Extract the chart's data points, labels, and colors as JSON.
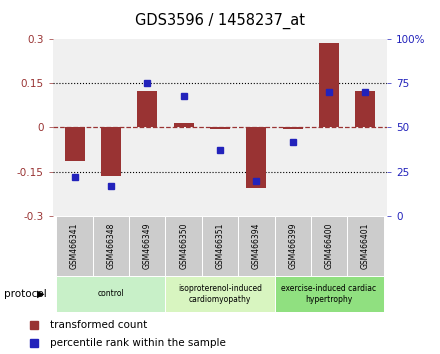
{
  "title": "GDS3596 / 1458237_at",
  "samples": [
    "GSM466341",
    "GSM466348",
    "GSM466349",
    "GSM466350",
    "GSM466351",
    "GSM466394",
    "GSM466399",
    "GSM466400",
    "GSM466401"
  ],
  "red_values": [
    -0.115,
    -0.165,
    0.125,
    0.015,
    -0.005,
    -0.205,
    -0.005,
    0.285,
    0.125
  ],
  "blue_values": [
    22,
    17,
    75,
    68,
    37,
    20,
    42,
    70,
    70
  ],
  "ylim_left": [
    -0.3,
    0.3
  ],
  "ylim_right": [
    0,
    100
  ],
  "yticks_left": [
    -0.3,
    -0.15,
    0,
    0.15,
    0.3
  ],
  "yticks_right": [
    0,
    25,
    50,
    75,
    100
  ],
  "ytick_labels_left": [
    "-0.3",
    "-0.15",
    "0",
    "0.15",
    "0.3"
  ],
  "ytick_labels_right": [
    "0",
    "25",
    "50",
    "75",
    "100%"
  ],
  "hlines_dotted": [
    0.15,
    -0.15
  ],
  "hline_dashed": 0,
  "groups": [
    {
      "label": "control",
      "indices": [
        0,
        1,
        2
      ],
      "color": "#c8f0c8"
    },
    {
      "label": "isoproterenol-induced\ncardiomyopathy",
      "indices": [
        3,
        4,
        5
      ],
      "color": "#d8f5c0"
    },
    {
      "label": "exercise-induced cardiac\nhypertrophy",
      "indices": [
        6,
        7,
        8
      ],
      "color": "#90e080"
    }
  ],
  "bar_color": "#993333",
  "dot_color": "#2222bb",
  "bar_width": 0.55,
  "bg_plot": "#f0f0f0",
  "bg_label": "#cccccc",
  "legend_red": "transformed count",
  "legend_blue": "percentile rank within the sample",
  "protocol_label": "protocol"
}
